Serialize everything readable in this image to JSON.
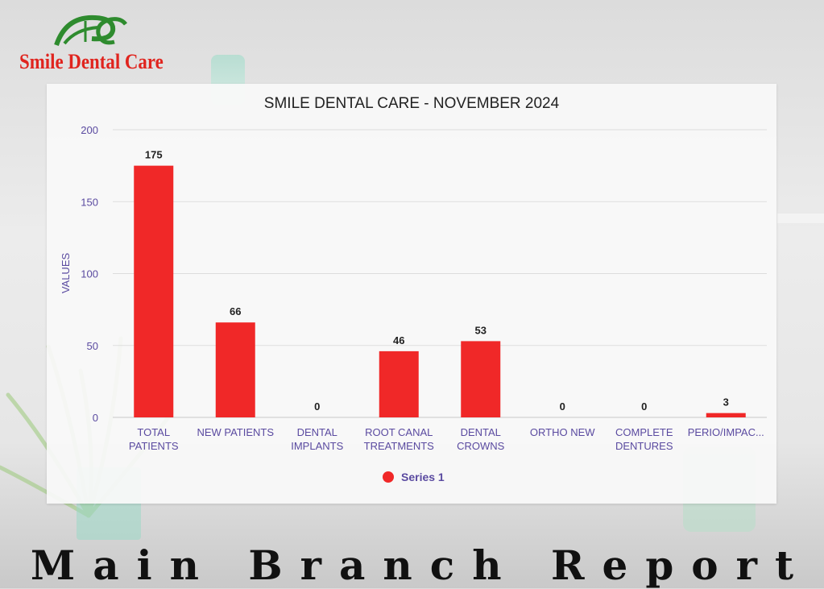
{
  "brand": {
    "name": "Smile Dental Care",
    "logo_icon": "sdc-monogram-logo",
    "colors": {
      "logo_green": "#2e8b2e",
      "logo_red": "#e0241e"
    }
  },
  "footer": {
    "title": "Main Branch Report"
  },
  "colors": {
    "bar": "#f02828",
    "axis_text": "#5a4aa0",
    "title_text": "#222222",
    "grid": "#dddddd"
  },
  "chart_data": {
    "type": "bar",
    "title": "SMILE DENTAL CARE - NOVEMBER 2024",
    "xlabel": "",
    "ylabel": "VALUES",
    "ylim": [
      0,
      200
    ],
    "yticks": [
      0,
      50,
      100,
      150,
      200
    ],
    "grid": true,
    "legend_position": "bottom-center",
    "categories": [
      [
        "TOTAL",
        "PATIENTS"
      ],
      [
        "NEW PATIENTS"
      ],
      [
        "DENTAL",
        "IMPLANTS"
      ],
      [
        "ROOT CANAL",
        "TREATMENTS"
      ],
      [
        "DENTAL",
        "CROWNS"
      ],
      [
        "ORTHO NEW"
      ],
      [
        "COMPLETE",
        "DENTURES"
      ],
      [
        "PERIO/IMPAC..."
      ]
    ],
    "series": [
      {
        "name": "Series 1",
        "values": [
          175,
          66,
          0,
          46,
          53,
          0,
          0,
          3
        ]
      }
    ]
  }
}
